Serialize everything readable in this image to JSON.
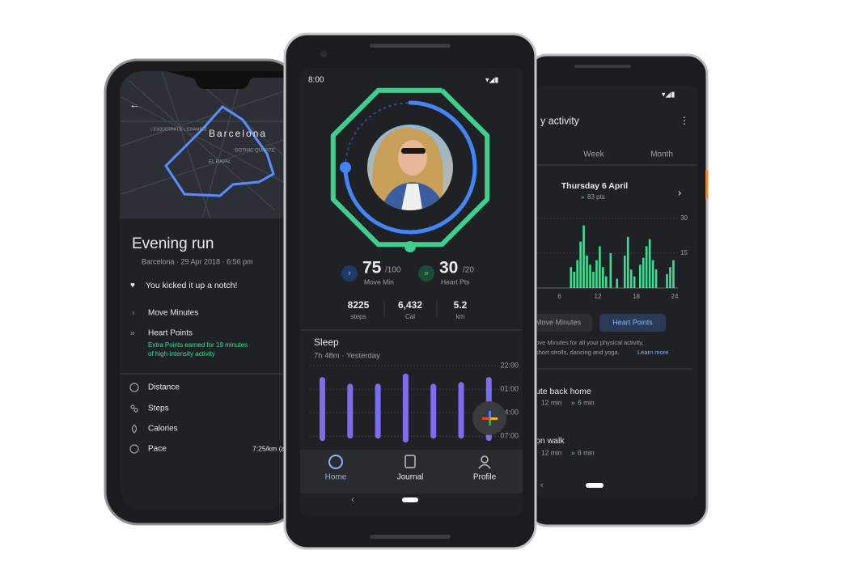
{
  "left_phone": {
    "map_labels": [
      "Barcelona",
      "L'ESQUERRA DE L'EIXAMPLE",
      "EL RAVAL",
      "GOTHIC QUARTE"
    ],
    "title": "Evening run",
    "subtitle": "Barcelona · 29 Apr 2018 · 6:56 pm",
    "highlight": "You kicked it up a notch!",
    "rows": [
      {
        "label": "Move Minutes"
      },
      {
        "label": "Heart Points",
        "note_lines": [
          "Extra Points earned for 19 minutes",
          "of high-intensity activity"
        ]
      }
    ],
    "metrics": [
      {
        "label": "Distance"
      },
      {
        "label": "Steps"
      },
      {
        "label": "Calories"
      },
      {
        "label": "Pace",
        "value": "7:25/km (a"
      }
    ]
  },
  "center_phone": {
    "time": "8:00",
    "move": {
      "value": 75,
      "goal": {
        "value": 100,
        "label": "/100"
      },
      "label": "Move Min"
    },
    "heart": {
      "value": 30,
      "goal": {
        "value": 20,
        "label": "/20"
      },
      "label": "Heart Pts"
    },
    "stats": [
      {
        "value": "8225",
        "label": "steps"
      },
      {
        "value": "6,432",
        "label": "Cal"
      },
      {
        "value": "5.2",
        "label": "km"
      }
    ],
    "sleep": {
      "title": "Sleep",
      "summary": "7h 48m · Yesterday",
      "ylim": [
        0,
        10
      ],
      "yticks": [
        {
          "value": 0,
          "label": "22:00"
        },
        {
          "value": 3,
          "label": "01:00"
        },
        {
          "value": 6,
          "label": "04:00"
        },
        {
          "value": 9,
          "label": "07:00"
        }
      ],
      "bars": [
        {
          "start": 1.45,
          "end": 9.6
        },
        {
          "start": 2.3,
          "end": 9.3
        },
        {
          "start": 2.3,
          "end": 9.3
        },
        {
          "start": 1.0,
          "end": 9.8
        },
        {
          "start": 2.3,
          "end": 9.3
        },
        {
          "start": 2.1,
          "end": 9.3
        },
        {
          "start": 1.45,
          "end": 9.6
        }
      ],
      "color": "#7c6cf0"
    },
    "nav": [
      "Home",
      "Journal",
      "Profile"
    ]
  },
  "right_phone": {
    "title": "y activity",
    "tabs": [
      "Week",
      "Month"
    ],
    "date": "Thursday 6 April",
    "points": "83 pts",
    "chart": {
      "type": "bar",
      "color": "#3ddc97",
      "xlim": [
        0,
        24
      ],
      "xticks": [
        6,
        12,
        18,
        24
      ],
      "ylim": [
        0,
        30
      ],
      "yticks": [
        15,
        30
      ],
      "x": [
        7.8,
        8.3,
        8.8,
        9.3,
        9.8,
        10.3,
        10.8,
        11.3,
        11.8,
        12.3,
        12.8,
        13.3,
        14,
        15,
        16.2,
        16.7,
        17.2,
        17.7,
        18.6,
        19.1,
        19.6,
        20.1,
        20.6,
        21.1,
        22.8,
        23.3,
        23.8
      ],
      "values": [
        9,
        7,
        12,
        20,
        27,
        14,
        10,
        7,
        12,
        18,
        9,
        5,
        15,
        4,
        14,
        22,
        8,
        5,
        10,
        13,
        18,
        21,
        12,
        8,
        6,
        9,
        12
      ]
    },
    "chips": [
      "Move Minutes",
      "Heart Points"
    ],
    "description_lines": [
      "Move Minutes for all your physical activity,",
      "short strolls, dancing and yoga."
    ],
    "link": "Learn more",
    "activities": [
      {
        "name": "ute back home",
        "move": "12 min",
        "heart": "6 min"
      },
      {
        "name": "on walk",
        "move": "12 min",
        "heart": "6 min"
      }
    ]
  }
}
